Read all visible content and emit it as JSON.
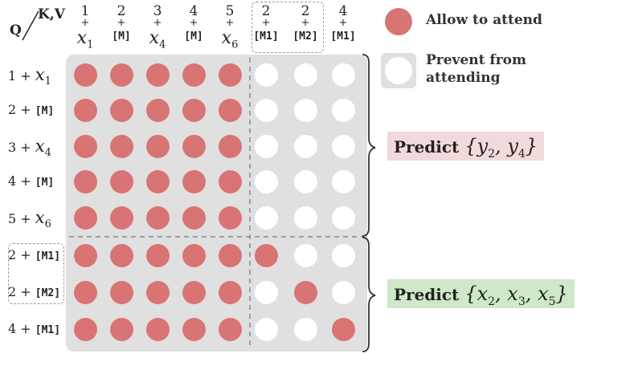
{
  "corner": {
    "q_label": "Q",
    "kv_label": "K,V"
  },
  "columns": [
    {
      "num": "1",
      "plus": "+",
      "tok": "x",
      "sub": "1",
      "kind": "var"
    },
    {
      "num": "2",
      "plus": "+",
      "tok": "[M]",
      "sub": "",
      "kind": "mask"
    },
    {
      "num": "3",
      "plus": "+",
      "tok": "x",
      "sub": "4",
      "kind": "var"
    },
    {
      "num": "4",
      "plus": "+",
      "tok": "[M]",
      "sub": "",
      "kind": "mask"
    },
    {
      "num": "5",
      "plus": "+",
      "tok": "x",
      "sub": "6",
      "kind": "var"
    },
    {
      "num": "2",
      "plus": "+",
      "tok": "[M1]",
      "sub": "",
      "kind": "mask"
    },
    {
      "num": "2",
      "plus": "+",
      "tok": "[M2]",
      "sub": "",
      "kind": "mask"
    },
    {
      "num": "4",
      "plus": "+",
      "tok": "[M1]",
      "sub": "",
      "kind": "mask"
    }
  ],
  "rows": [
    {
      "num": "1",
      "plus": "+",
      "tok": "x",
      "sub": "1",
      "kind": "var"
    },
    {
      "num": "2",
      "plus": "+",
      "tok": "[M]",
      "sub": "",
      "kind": "mask"
    },
    {
      "num": "3",
      "plus": "+",
      "tok": "x",
      "sub": "4",
      "kind": "var"
    },
    {
      "num": "4",
      "plus": "+",
      "tok": "[M]",
      "sub": "",
      "kind": "mask"
    },
    {
      "num": "5",
      "plus": "+",
      "tok": "x",
      "sub": "6",
      "kind": "var"
    },
    {
      "num": "2",
      "plus": "+",
      "tok": "[M1]",
      "sub": "",
      "kind": "mask"
    },
    {
      "num": "2",
      "plus": "+",
      "tok": "[M2]",
      "sub": "",
      "kind": "mask"
    },
    {
      "num": "4",
      "plus": "+",
      "tok": "[M1]",
      "sub": "",
      "kind": "mask"
    }
  ],
  "matrix": [
    [
      1,
      1,
      1,
      1,
      1,
      0,
      0,
      0
    ],
    [
      1,
      1,
      1,
      1,
      1,
      0,
      0,
      0
    ],
    [
      1,
      1,
      1,
      1,
      1,
      0,
      0,
      0
    ],
    [
      1,
      1,
      1,
      1,
      1,
      0,
      0,
      0
    ],
    [
      1,
      1,
      1,
      1,
      1,
      0,
      0,
      0
    ],
    [
      1,
      1,
      1,
      1,
      1,
      1,
      0,
      0
    ],
    [
      1,
      1,
      1,
      1,
      1,
      0,
      1,
      0
    ],
    [
      1,
      1,
      1,
      1,
      1,
      0,
      0,
      1
    ]
  ],
  "legend": {
    "allow": "Allow to attend",
    "prevent": "Prevent from attending"
  },
  "predictions": [
    {
      "label": "Predict",
      "set_open": "{",
      "items": [
        {
          "tok": "y",
          "sub": "2"
        },
        {
          "tok": "y",
          "sub": "4"
        }
      ],
      "set_close": "}"
    },
    {
      "label": "Predict",
      "set_open": "{",
      "items": [
        {
          "tok": "x",
          "sub": "2"
        },
        {
          "tok": "x",
          "sub": "3"
        },
        {
          "tok": "x",
          "sub": "5"
        }
      ],
      "set_close": "}"
    }
  ],
  "colors": {
    "allow": "#d97474",
    "prevent": "#ffffff",
    "grid_bg": "#e0e0e0",
    "predict1_bg": "#f3dada",
    "predict2_bg": "#cfe8c8"
  }
}
